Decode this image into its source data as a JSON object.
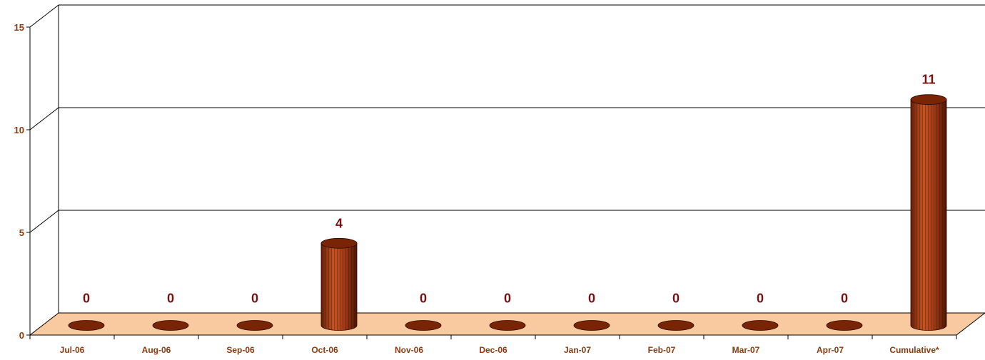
{
  "chart_data": {
    "type": "bar",
    "categories": [
      "Jul-06",
      "Aug-06",
      "Sep-06",
      "Oct-06",
      "Nov-06",
      "Dec-06",
      "Jan-07",
      "Feb-07",
      "Mar-07",
      "Apr-07",
      "Cumulative*"
    ],
    "values": [
      0,
      0,
      0,
      4,
      0,
      0,
      0,
      0,
      0,
      0,
      11
    ],
    "data_labels": [
      "0",
      "0",
      "0",
      "4",
      "0",
      "0",
      "0",
      "0",
      "0",
      "0",
      "11"
    ],
    "y_ticks": [
      "0",
      "5",
      "10",
      "15"
    ],
    "ylim": [
      0,
      15
    ],
    "title": "",
    "xlabel": "",
    "ylabel": "",
    "grid": true,
    "style": "3d-cylinder",
    "colors": {
      "bar": "#b5421a",
      "bar_dark": "#5a1a04",
      "floor": "#f9c9a0",
      "label": "#8b3a0f",
      "data_label": "#7a0f0f"
    }
  }
}
